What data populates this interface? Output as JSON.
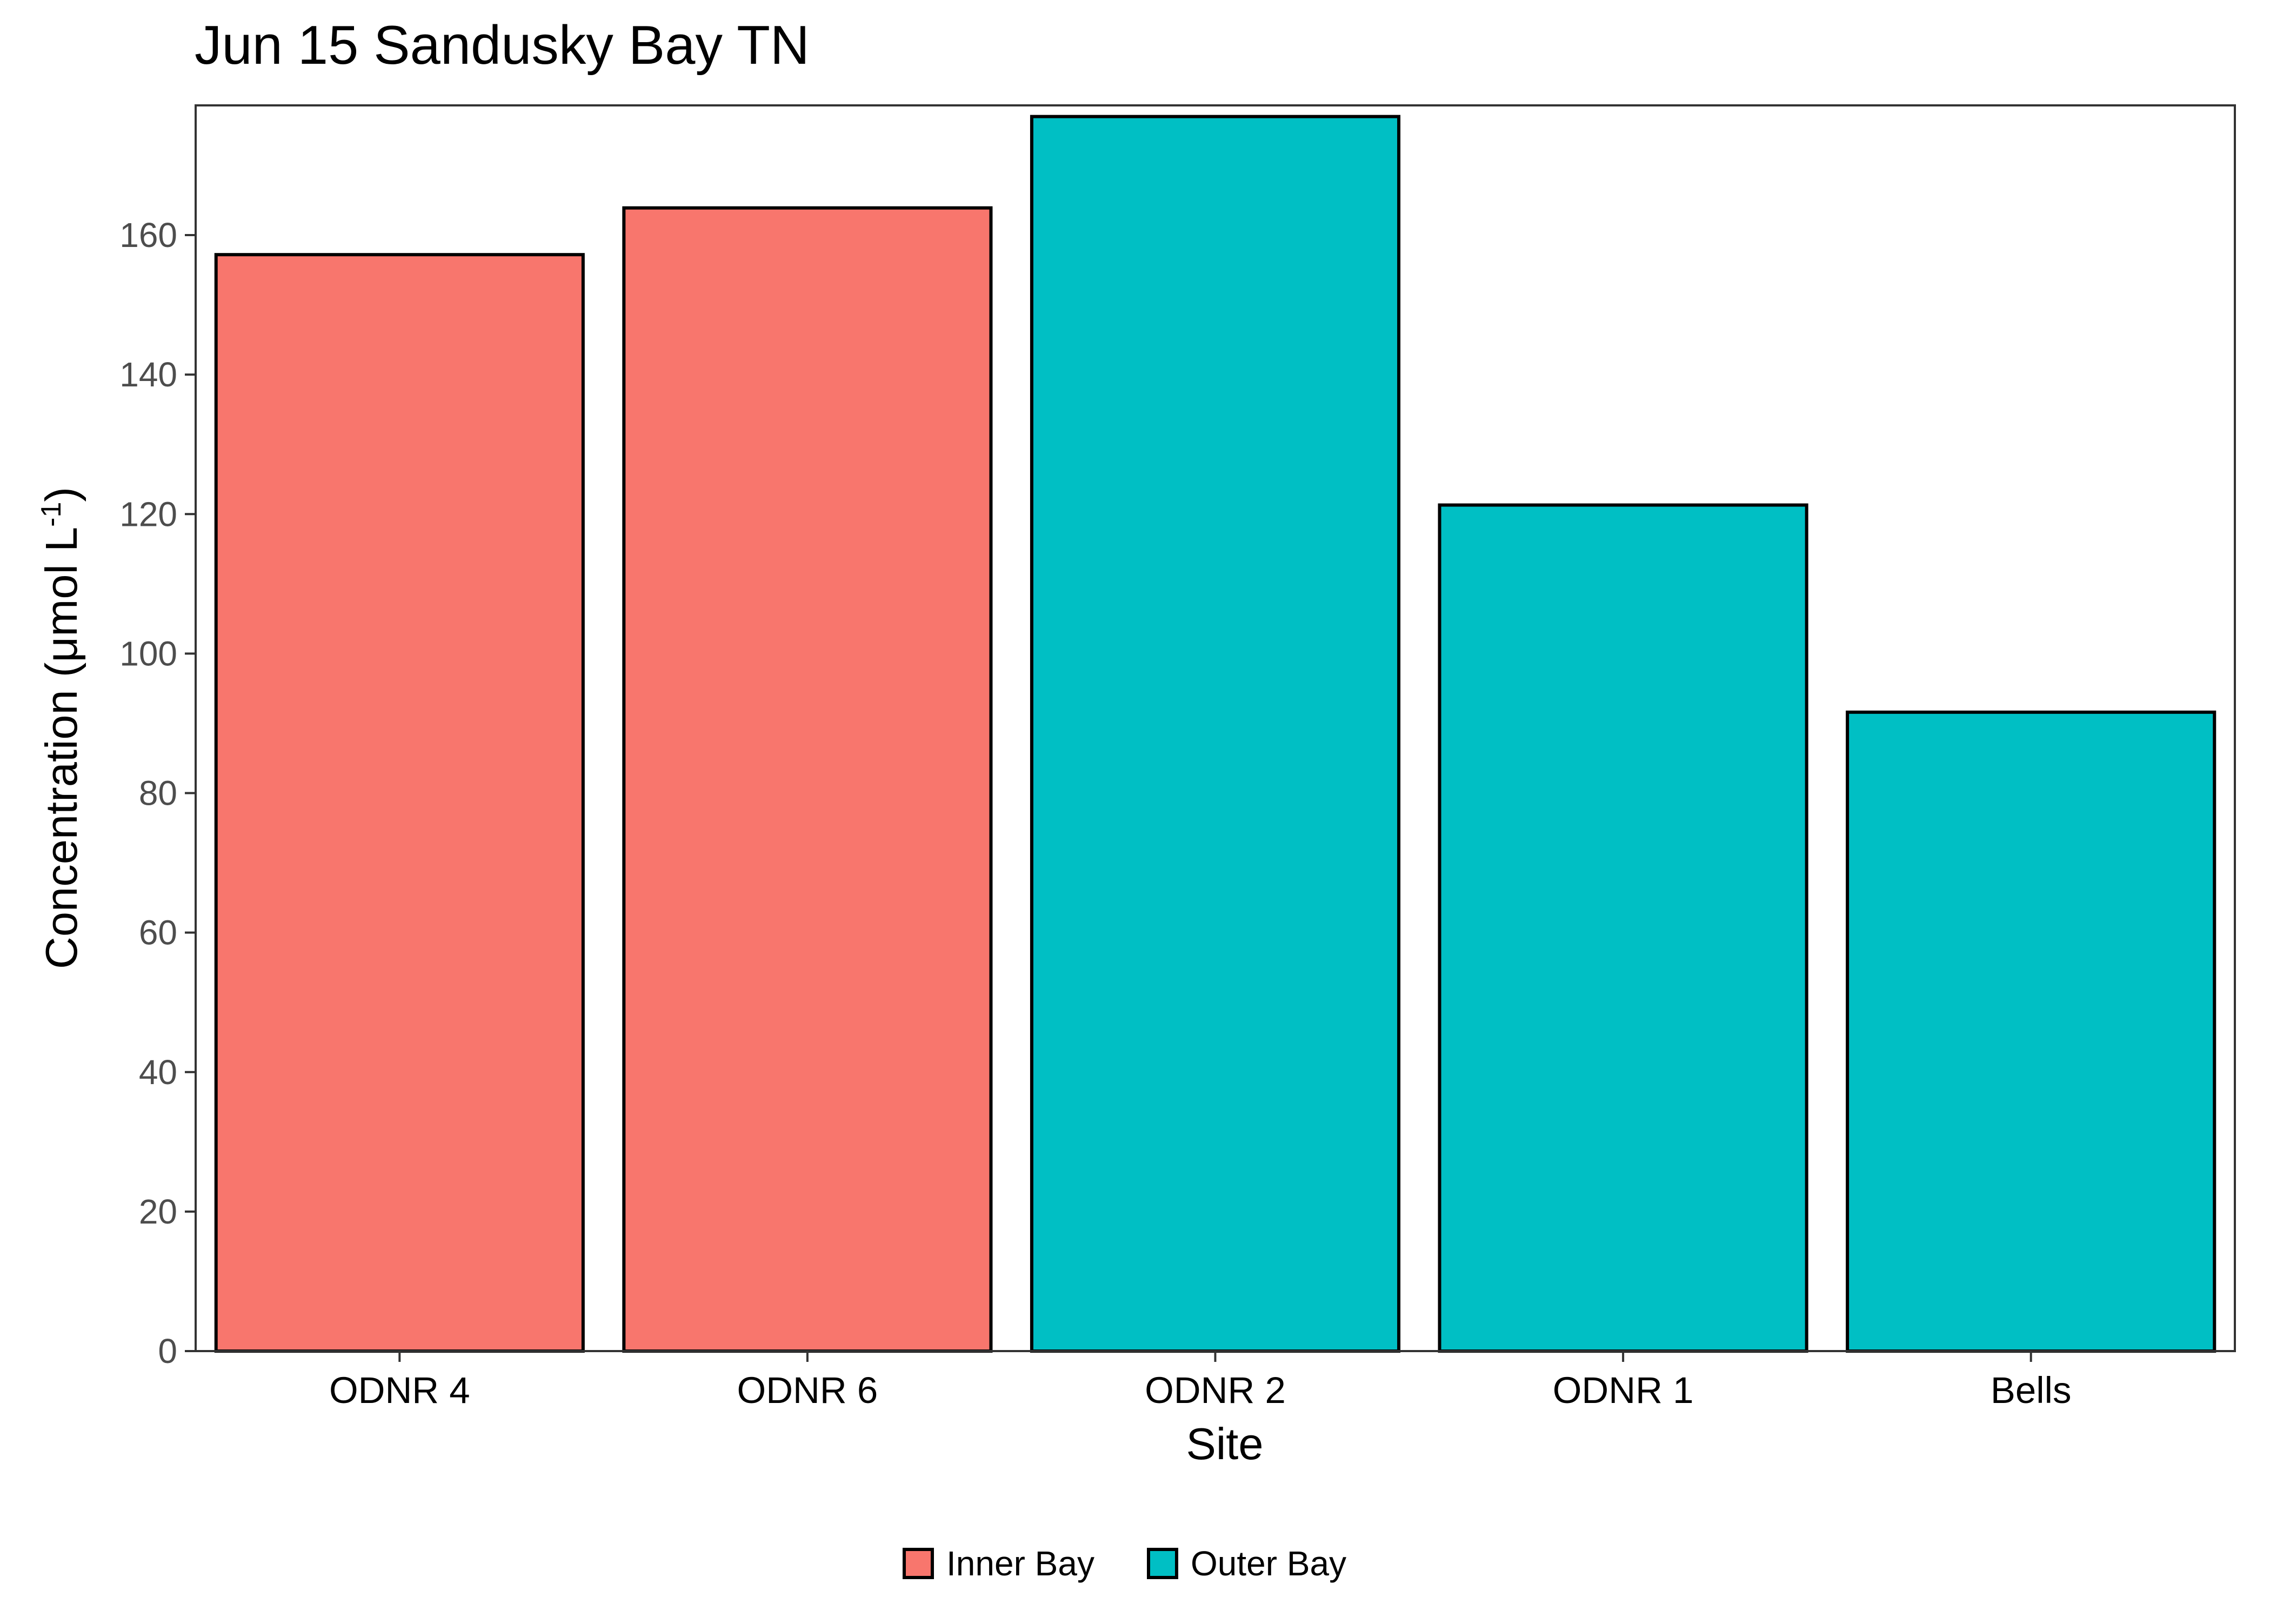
{
  "chart_data": {
    "type": "bar",
    "title": "Jun 15 Sandusky Bay TN",
    "xlabel": "Site",
    "ylabel": {
      "main": "Concentration (μmol L",
      "sup": "-1",
      "close": ")"
    },
    "categories": [
      "ODNR 4",
      "ODNR 6",
      "ODNR 2",
      "ODNR 1",
      "Bells"
    ],
    "values": [
      157.2,
      163.9,
      177.0,
      121.3,
      91.6
    ],
    "groups": [
      "Inner Bay",
      "Inner Bay",
      "Outer Bay",
      "Outer Bay",
      "Outer Bay"
    ],
    "ylim": [
      0,
      178.6
    ],
    "yticks": [
      0,
      20,
      40,
      60,
      80,
      100,
      120,
      140,
      160
    ],
    "grid": false,
    "legend": {
      "position": "bottom",
      "entries": [
        {
          "label": "Inner Bay",
          "color": "#F8766D"
        },
        {
          "label": "Outer Bay",
          "color": "#00BFC4"
        }
      ]
    },
    "colors": {
      "Inner Bay": "#F8766D",
      "Outer Bay": "#00BFC4",
      "bar_outline": "#000000",
      "panel_border": "#333333"
    }
  }
}
